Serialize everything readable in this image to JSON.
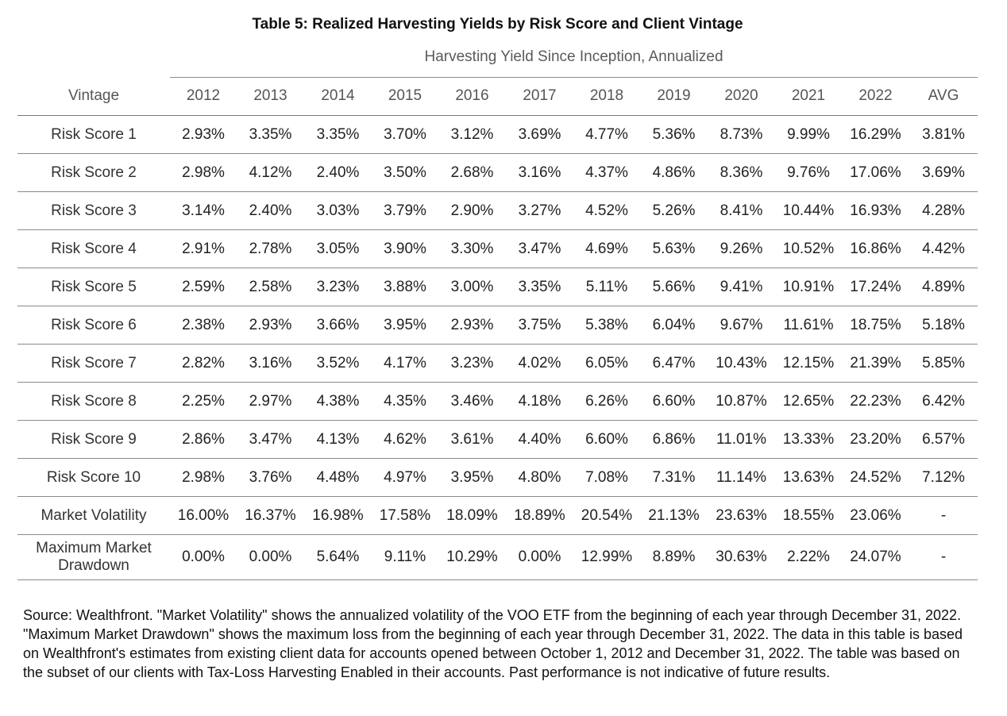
{
  "title": "Table 5: Realized Harvesting Yields by Risk Score and Client Vintage",
  "subtitle": "Harvesting Yield Since Inception, Annualized",
  "columns": [
    "Vintage",
    "2012",
    "2013",
    "2014",
    "2015",
    "2016",
    "2017",
    "2018",
    "2019",
    "2020",
    "2021",
    "2022",
    "AVG"
  ],
  "rows": [
    {
      "label": "Risk Score 1",
      "values": [
        "2.93%",
        "3.35%",
        "3.35%",
        "3.70%",
        "3.12%",
        "3.69%",
        "4.77%",
        "5.36%",
        "8.73%",
        "9.99%",
        "16.29%",
        "3.81%"
      ]
    },
    {
      "label": "Risk Score 2",
      "values": [
        "2.98%",
        "4.12%",
        "2.40%",
        "3.50%",
        "2.68%",
        "3.16%",
        "4.37%",
        "4.86%",
        "8.36%",
        "9.76%",
        "17.06%",
        "3.69%"
      ]
    },
    {
      "label": "Risk Score 3",
      "values": [
        "3.14%",
        "2.40%",
        "3.03%",
        "3.79%",
        "2.90%",
        "3.27%",
        "4.52%",
        "5.26%",
        "8.41%",
        "10.44%",
        "16.93%",
        "4.28%"
      ]
    },
    {
      "label": "Risk Score 4",
      "values": [
        "2.91%",
        "2.78%",
        "3.05%",
        "3.90%",
        "3.30%",
        "3.47%",
        "4.69%",
        "5.63%",
        "9.26%",
        "10.52%",
        "16.86%",
        "4.42%"
      ]
    },
    {
      "label": "Risk Score 5",
      "values": [
        "2.59%",
        "2.58%",
        "3.23%",
        "3.88%",
        "3.00%",
        "3.35%",
        "5.11%",
        "5.66%",
        "9.41%",
        "10.91%",
        "17.24%",
        "4.89%"
      ]
    },
    {
      "label": "Risk Score 6",
      "values": [
        "2.38%",
        "2.93%",
        "3.66%",
        "3.95%",
        "2.93%",
        "3.75%",
        "5.38%",
        "6.04%",
        "9.67%",
        "11.61%",
        "18.75%",
        "5.18%"
      ]
    },
    {
      "label": "Risk Score 7",
      "values": [
        "2.82%",
        "3.16%",
        "3.52%",
        "4.17%",
        "3.23%",
        "4.02%",
        "6.05%",
        "6.47%",
        "10.43%",
        "12.15%",
        "21.39%",
        "5.85%"
      ]
    },
    {
      "label": "Risk Score 8",
      "values": [
        "2.25%",
        "2.97%",
        "4.38%",
        "4.35%",
        "3.46%",
        "4.18%",
        "6.26%",
        "6.60%",
        "10.87%",
        "12.65%",
        "22.23%",
        "6.42%"
      ]
    },
    {
      "label": "Risk Score 9",
      "values": [
        "2.86%",
        "3.47%",
        "4.13%",
        "4.62%",
        "3.61%",
        "4.40%",
        "6.60%",
        "6.86%",
        "11.01%",
        "13.33%",
        "23.20%",
        "6.57%"
      ]
    },
    {
      "label": "Risk Score 10",
      "values": [
        "2.98%",
        "3.76%",
        "4.48%",
        "4.97%",
        "3.95%",
        "4.80%",
        "7.08%",
        "7.31%",
        "11.14%",
        "13.63%",
        "24.52%",
        "7.12%"
      ]
    },
    {
      "label": "Market Volatility",
      "values": [
        "16.00%",
        "16.37%",
        "16.98%",
        "17.58%",
        "18.09%",
        "18.89%",
        "20.54%",
        "21.13%",
        "23.63%",
        "18.55%",
        "23.06%",
        "-"
      ]
    },
    {
      "label": "Maximum Market Drawdown",
      "values": [
        "0.00%",
        "0.00%",
        "5.64%",
        "9.11%",
        "10.29%",
        "0.00%",
        "12.99%",
        "8.89%",
        "30.63%",
        "2.22%",
        "24.07%",
        "-"
      ]
    }
  ],
  "source_note": "Source: Wealthfront. \"Market Volatility\" shows the annualized volatility of the VOO ETF from the beginning of each year through December 31, 2022. \"Maximum Market Drawdown\" shows the maximum loss from the beginning of each year through December 31, 2022. The data in this table is based on Wealthfront's estimates from existing client data for accounts opened between October 1, 2012 and December 31, 2022. The table was based on the subset of our clients with Tax-Loss Harvesting Enabled in their accounts. Past performance is not indicative of future results."
}
